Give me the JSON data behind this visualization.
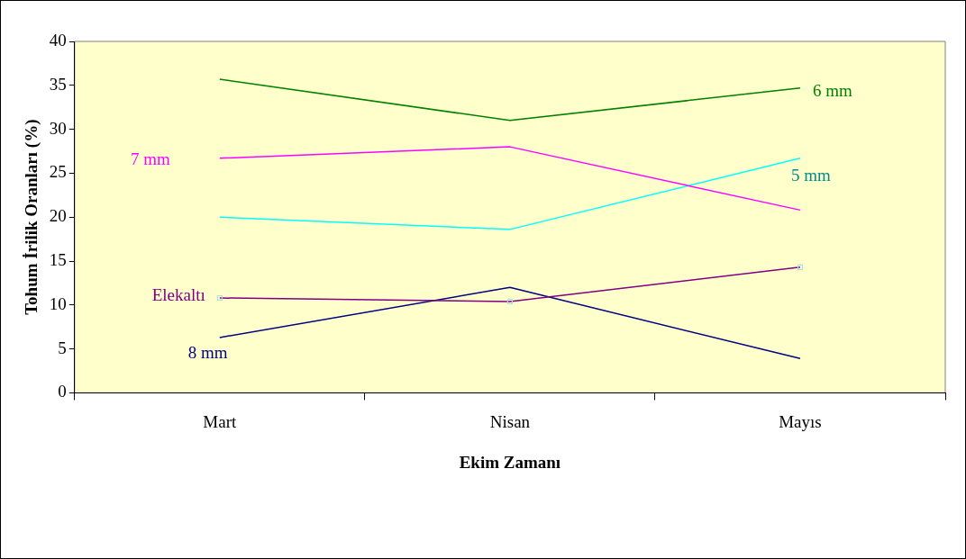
{
  "chart_data": {
    "type": "line",
    "xlabel": "Ekim Zamanı",
    "ylabel": "Tohum İrilik Oranları (%)",
    "categories": [
      "Mart",
      "Nisan",
      "Mayıs"
    ],
    "ylim": [
      0,
      40
    ],
    "yticks": [
      0,
      5,
      10,
      15,
      20,
      25,
      30,
      35,
      40
    ],
    "grid": false,
    "legend": false,
    "marker": "none",
    "line_style": "solid",
    "series": [
      {
        "name": "6 mm",
        "color": "#008000",
        "values": [
          35.7,
          31.0,
          34.7
        ]
      },
      {
        "name": "7 mm",
        "color": "#ff00ff",
        "values": [
          26.7,
          28.0,
          20.8
        ]
      },
      {
        "name": "5 mm",
        "color": "#00ffff",
        "values": [
          20.0,
          18.6,
          26.7
        ]
      },
      {
        "name": "Elekaltı",
        "color": "#800080",
        "values": [
          10.8,
          10.4,
          14.3
        ],
        "marker": "square"
      },
      {
        "name": "8 mm",
        "color": "#000080",
        "values": [
          6.3,
          12.0,
          3.9
        ]
      }
    ]
  }
}
